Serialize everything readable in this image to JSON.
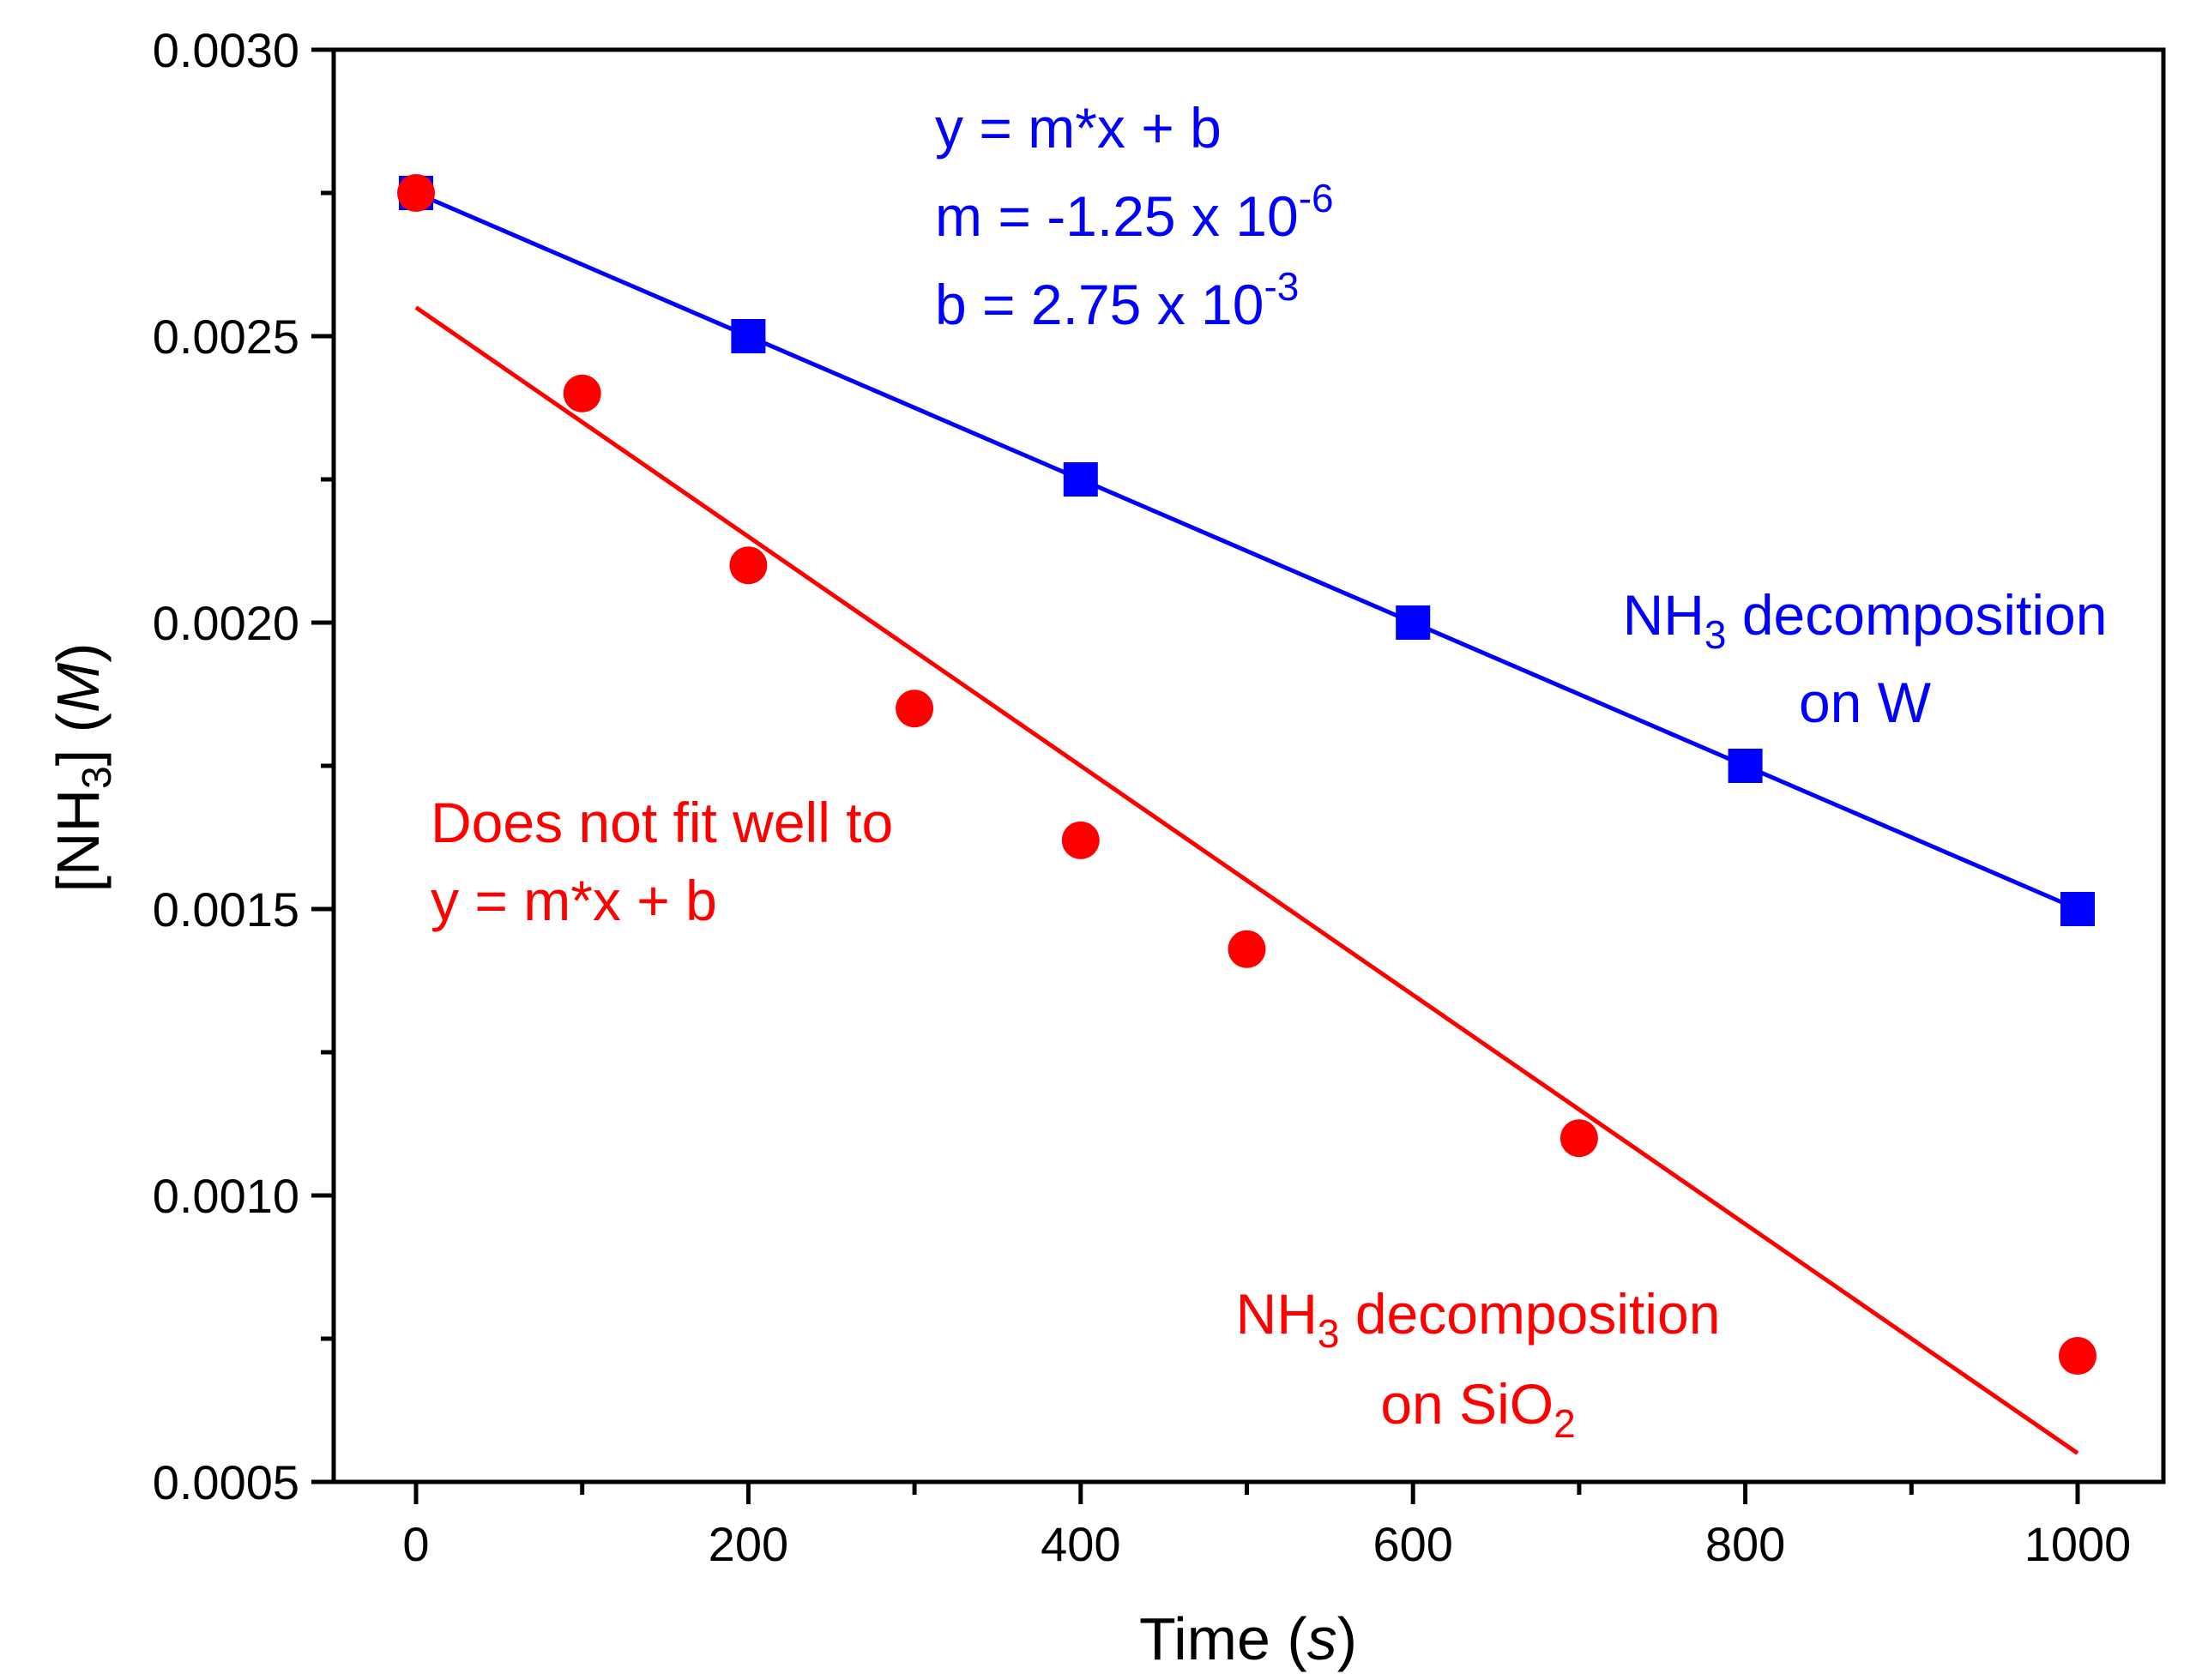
{
  "chart_data": {
    "type": "scatter",
    "xlabel": "Time",
    "xlabel_unit": "s",
    "ylabel_prefix": "[NH",
    "ylabel_sub": "3",
    "ylabel_suffix": "]",
    "ylabel_unit": "M",
    "xlim": [
      -50,
      1050
    ],
    "ylim": [
      0.0005,
      0.003
    ],
    "xticks": [
      0,
      200,
      400,
      600,
      800,
      1000
    ],
    "xtick_labels": [
      "0",
      "200",
      "400",
      "600",
      "800",
      "1000"
    ],
    "yticks": [
      0.0005,
      0.001,
      0.0015,
      0.002,
      0.0025,
      0.003
    ],
    "ytick_labels": [
      "0.0005",
      "0.0010",
      "0.0015",
      "0.0020",
      "0.0025",
      "0.0030"
    ],
    "grid": false,
    "series": [
      {
        "name": "NH3 decomposition on W",
        "color": "#0000ff",
        "marker": "square",
        "x": [
          0,
          200,
          400,
          600,
          800,
          1000
        ],
        "y": [
          0.00275,
          0.0025,
          0.00225,
          0.002,
          0.00175,
          0.0015
        ],
        "fit": {
          "x": [
            0,
            1000
          ],
          "y": [
            0.00275,
            0.0015
          ]
        }
      },
      {
        "name": "NH3 decomposition on SiO2",
        "color": "#ff0000",
        "marker": "circle",
        "x": [
          0,
          100,
          200,
          300,
          400,
          500,
          700,
          1000
        ],
        "y": [
          0.00275,
          0.0024,
          0.0021,
          0.00185,
          0.00162,
          0.00143,
          0.0011,
          0.00072
        ],
        "fit": {
          "x": [
            0,
            1000
          ],
          "y": [
            0.00255,
            0.00055
          ]
        }
      }
    ],
    "annotations": {
      "blue_eq": "y = m*x + b",
      "blue_m": "m = -1.25 x 10",
      "blue_m_exp": "-6",
      "blue_b": "b = 2.75 x 10",
      "blue_b_exp": "-3",
      "blue_label_1a": "NH",
      "blue_label_1sub": "3",
      "blue_label_1b": " decomposition",
      "blue_label_2": "on W",
      "red_note_1": "Does not fit well to",
      "red_note_2": "y = m*x + b",
      "red_label_1a": "NH",
      "red_label_1sub": "3",
      "red_label_1b": " decomposition",
      "red_label_2a": "on SiO",
      "red_label_2sub": "2"
    }
  }
}
